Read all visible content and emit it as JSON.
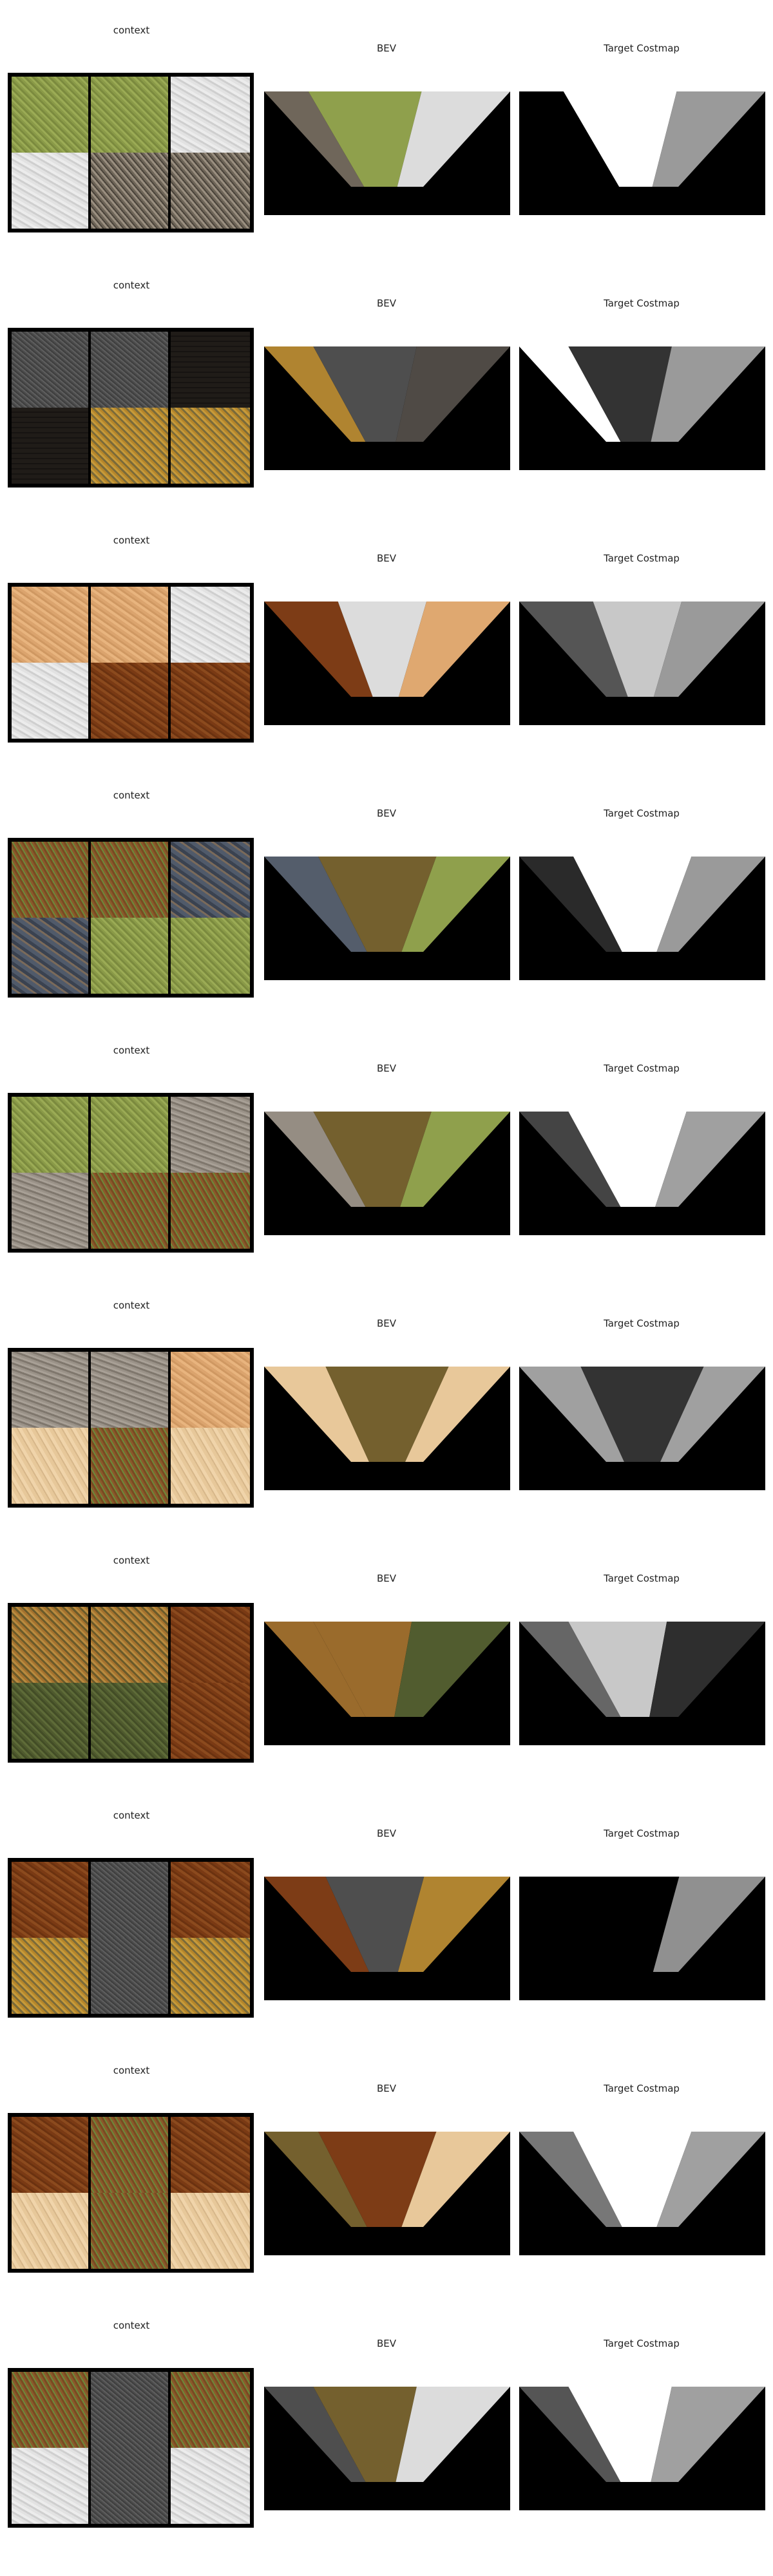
{
  "labels": {
    "context": "context",
    "bev": "BEV",
    "costmap": "Target Costmap"
  },
  "rows": [
    {
      "context": [
        "grass",
        "grass",
        "snow",
        "snow",
        "pebble",
        "pebble"
      ],
      "bev": {
        "left": "pebble",
        "mid": "grass",
        "right": "snow",
        "left_w": 0.18,
        "right_w": 0.36
      },
      "cost": {
        "left": "#000000",
        "mid": "#ffffff",
        "right": "#9a9a9a",
        "left_w": 0.18,
        "right_w": 0.36
      }
    },
    {
      "context": [
        "asphalt",
        "asphalt",
        "cobble",
        "cobble",
        "leaves",
        "leaves"
      ],
      "bev": {
        "left": "leaves",
        "mid": "asphalt",
        "right": "cobble",
        "left_w": 0.2,
        "right_w": 0.38
      },
      "cost": {
        "left": "#ffffff",
        "mid": "#333333",
        "right": "#9a9a9a",
        "left_w": 0.2,
        "right_w": 0.38
      }
    },
    {
      "context": [
        "sand",
        "sand",
        "snow",
        "snow",
        "redsoil",
        "redsoil"
      ],
      "bev": {
        "left": "redsoil",
        "mid": "snow",
        "right": "sand",
        "left_w": 0.3,
        "right_w": 0.34
      },
      "cost": {
        "left": "#555555",
        "mid": "#c8c8c8",
        "right": "#9a9a9a",
        "left_w": 0.3,
        "right_w": 0.34
      }
    },
    {
      "context": [
        "dirtgrass",
        "dirtgrass",
        "bricks",
        "bricks",
        "grass",
        "grass"
      ],
      "bev": {
        "left": "bricks",
        "mid": "dirtgrass",
        "right": "grass",
        "left_w": 0.22,
        "right_w": 0.3
      },
      "cost": {
        "left": "#2a2a2a",
        "mid": "#ffffff",
        "right": "#9a9a9a",
        "left_w": 0.22,
        "right_w": 0.3
      }
    },
    {
      "context": [
        "grass",
        "grass",
        "gravel",
        "gravel",
        "dirtgrass",
        "dirtgrass"
      ],
      "bev": {
        "left": "gravel",
        "mid": "dirtgrass",
        "right": "grass",
        "left_w": 0.2,
        "right_w": 0.32
      },
      "cost": {
        "left": "#444444",
        "mid": "#ffffff",
        "right": "#a0a0a0",
        "left_w": 0.2,
        "right_w": 0.32
      }
    },
    {
      "context": [
        "gravel",
        "gravel",
        "sand",
        "cracked",
        "dirtgrass",
        "cracked"
      ],
      "bev": {
        "left": "cracked",
        "mid": "dirtgrass",
        "right": "cracked",
        "left_w": 0.25,
        "right_w": 0.25
      },
      "cost": {
        "left": "#a0a0a0",
        "mid": "#333333",
        "right": "#a0a0a0",
        "left_w": 0.25,
        "right_w": 0.25
      }
    },
    {
      "context": [
        "leafsoil",
        "leafsoil",
        "redsoil",
        "moss",
        "moss",
        "redsoil"
      ],
      "bev": {
        "left": "leafsoil",
        "mid": "leafsoil",
        "right": "moss",
        "left_w": 0.2,
        "right_w": 0.4
      },
      "cost": {
        "left": "#666666",
        "mid": "#c8c8c8",
        "right": "#2e2e2e",
        "left_w": 0.2,
        "right_w": 0.4
      }
    },
    {
      "context": [
        "redsoil",
        "asphalt",
        "redsoil",
        "leaves",
        "asphalt",
        "leaves"
      ],
      "bev": {
        "left": "redsoil",
        "mid": "asphalt",
        "right": "leaves",
        "left_w": 0.25,
        "right_w": 0.35
      },
      "cost": {
        "left": "#000000",
        "mid": "#000000",
        "right": "#909090",
        "left_w": 0.25,
        "right_w": 0.35
      }
    },
    {
      "context": [
        "redsoil",
        "dirtgrass",
        "redsoil",
        "cracked",
        "dirtgrass",
        "cracked"
      ],
      "bev": {
        "left": "dirtgrass",
        "mid": "redsoil",
        "right": "cracked",
        "left_w": 0.22,
        "right_w": 0.3
      },
      "cost": {
        "left": "#777777",
        "mid": "#ffffff",
        "right": "#a0a0a0",
        "left_w": 0.22,
        "right_w": 0.3
      }
    },
    {
      "context": [
        "dirtgrass",
        "asphalt",
        "dirtgrass",
        "snow",
        "asphalt",
        "snow"
      ],
      "bev": {
        "left": "asphalt",
        "mid": "dirtgrass",
        "right": "snow",
        "left_w": 0.2,
        "right_w": 0.38
      },
      "cost": {
        "left": "#555555",
        "mid": "#ffffff",
        "right": "#a0a0a0",
        "left_w": 0.2,
        "right_w": 0.38
      }
    }
  ]
}
